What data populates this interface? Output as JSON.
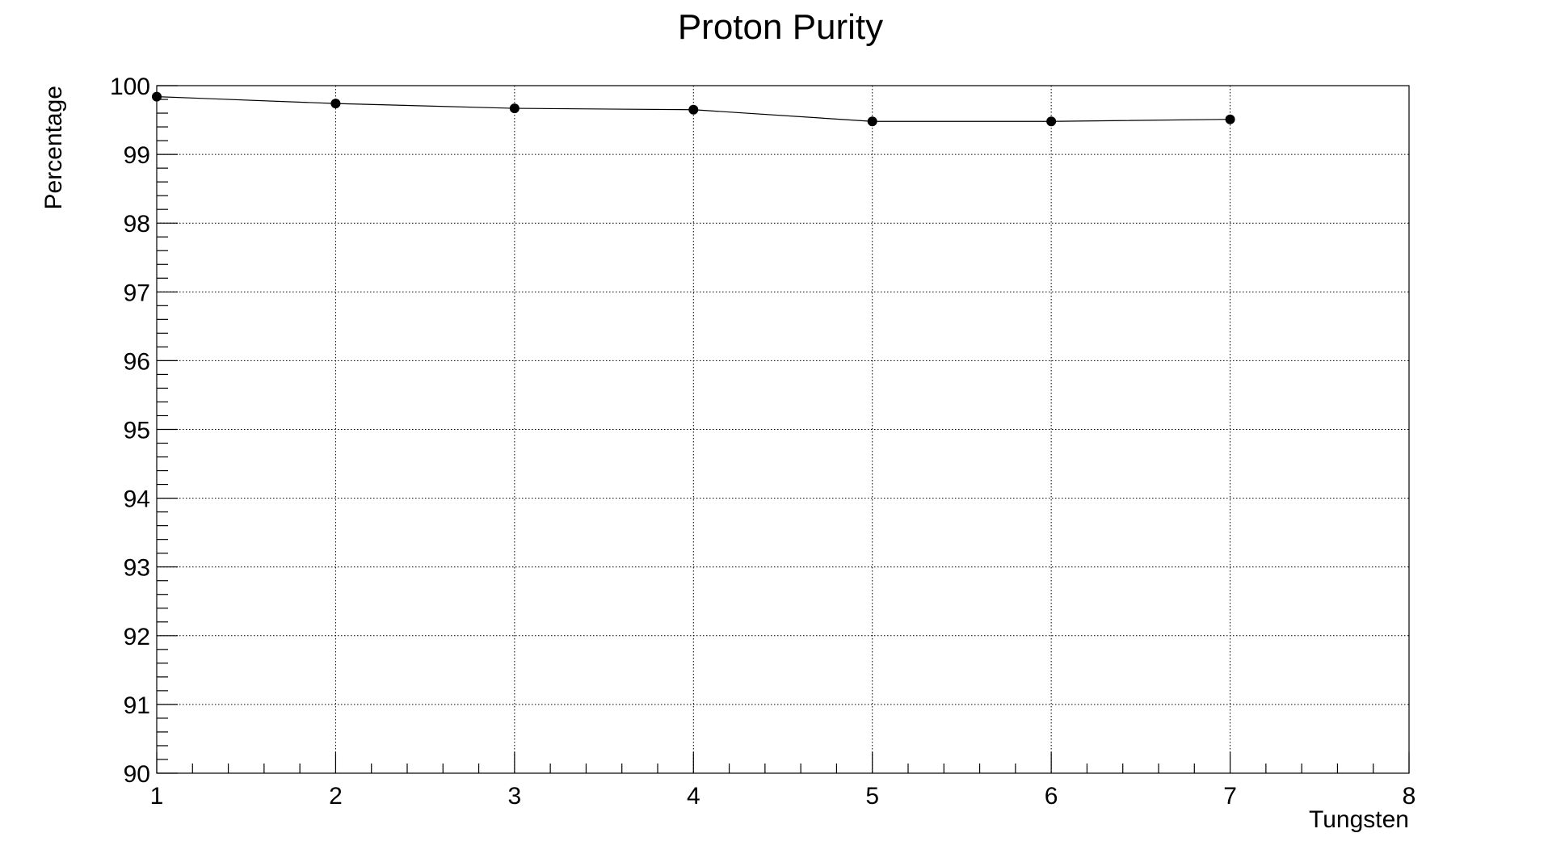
{
  "chart_data": {
    "type": "line",
    "title": "Proton Purity",
    "xlabel": "Tungsten",
    "ylabel": "Percentage",
    "xlim": [
      1,
      8
    ],
    "ylim": [
      90,
      100
    ],
    "x_ticks": [
      "1",
      "2",
      "3",
      "4",
      "5",
      "6",
      "7",
      "8"
    ],
    "y_ticks": [
      "90",
      "91",
      "92",
      "93",
      "94",
      "95",
      "96",
      "97",
      "98",
      "99",
      "100"
    ],
    "grid": true,
    "marker": "circle",
    "series": [
      {
        "x": [
          1,
          2,
          3,
          4,
          5,
          6,
          7
        ],
        "values": [
          99.84,
          99.74,
          99.67,
          99.65,
          99.48,
          99.48,
          99.51
        ]
      }
    ],
    "colors": {
      "line": "#000000",
      "marker": "#000000",
      "frame": "#000000",
      "grid": "#000000",
      "background": "#ffffff"
    }
  }
}
